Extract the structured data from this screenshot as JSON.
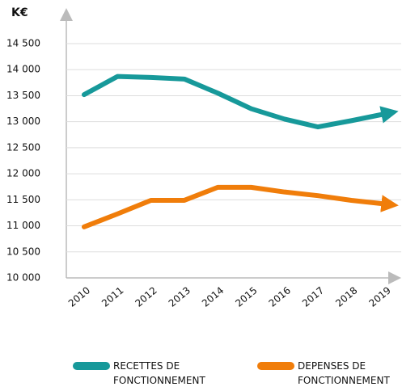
{
  "chart_data": {
    "type": "line",
    "y_label": "K€",
    "categories": [
      "2010",
      "2011",
      "2012",
      "2013",
      "2014",
      "2015",
      "2016",
      "2017",
      "2018",
      "2019"
    ],
    "series": [
      {
        "name": "RECETTES DE FONCTIONNEMENT",
        "color": "#17999a",
        "values": [
          13520,
          13870,
          13850,
          13820,
          13550,
          13250,
          13050,
          12900,
          13020,
          13150
        ]
      },
      {
        "name": "DEPENSES DE FONCTIONNEMENT",
        "color": "#f07d0a",
        "values": [
          10980,
          11230,
          11490,
          11490,
          11740,
          11740,
          11650,
          11580,
          11490,
          11420
        ]
      }
    ],
    "ylim": [
      10000,
      14500
    ],
    "yticks": [
      {
        "value": 10000,
        "label": "10 000"
      },
      {
        "value": 10500,
        "label": "10 500"
      },
      {
        "value": 11000,
        "label": "11 000"
      },
      {
        "value": 11500,
        "label": "11 500"
      },
      {
        "value": 12000,
        "label": "12 000"
      },
      {
        "value": 12500,
        "label": "12 500"
      },
      {
        "value": 13000,
        "label": "13 000"
      },
      {
        "value": 13500,
        "label": "13 500"
      },
      {
        "value": 14000,
        "label": "14 000"
      },
      {
        "value": 14500,
        "label": {
          "value": 14500,
          "label": "14 500"
        }
      }
    ],
    "grid": true
  }
}
